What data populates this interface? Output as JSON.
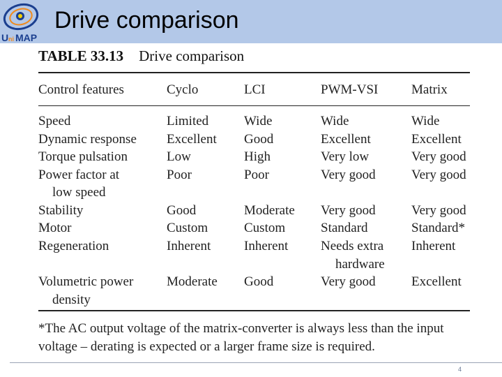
{
  "slide": {
    "title": "Drive comparison",
    "logo_text": "UniMAP",
    "page_number": "4"
  },
  "table": {
    "number": "TABLE 33.13",
    "caption": "Drive comparison",
    "headers": [
      "Control features",
      "Cyclo",
      "LCI",
      "PWM-VSI",
      "Matrix"
    ],
    "rows": [
      {
        "feature": "Speed",
        "cyclo": "Limited",
        "lci": "Wide",
        "pwm": "Wide",
        "matrix": "Wide"
      },
      {
        "feature": "Dynamic response",
        "cyclo": "Excellent",
        "lci": "Good",
        "pwm": "Excellent",
        "matrix": "Excellent"
      },
      {
        "feature": "Torque pulsation",
        "cyclo": "Low",
        "lci": "High",
        "pwm": "Very low",
        "matrix": "Very good"
      },
      {
        "feature": "Power factor at",
        "feature_cont": "low speed",
        "cyclo": "Poor",
        "lci": "Poor",
        "pwm": "Very good",
        "matrix": "Very good"
      },
      {
        "feature": "Stability",
        "cyclo": "Good",
        "lci": "Moderate",
        "pwm": "Very good",
        "matrix": "Very good"
      },
      {
        "feature": "Motor",
        "cyclo": "Custom",
        "lci": "Custom",
        "pwm": "Standard",
        "matrix": "Standard*"
      },
      {
        "feature": "Regeneration",
        "cyclo": "Inherent",
        "lci": "Inherent",
        "pwm": "Needs extra",
        "pwm_cont": "hardware",
        "matrix": "Inherent"
      },
      {
        "feature": "Volumetric power",
        "feature_cont": "density",
        "cyclo": "Moderate",
        "lci": "Good",
        "pwm": "Very good",
        "matrix": "Excellent"
      }
    ],
    "footnote": "*The AC output voltage of the matrix-converter is always less than the input voltage – derating is expected or a larger frame size is required."
  },
  "colors": {
    "header_bar": "#b3c8e8",
    "logo_blue": "#1b3f8f",
    "logo_orange": "#f08a1c"
  }
}
